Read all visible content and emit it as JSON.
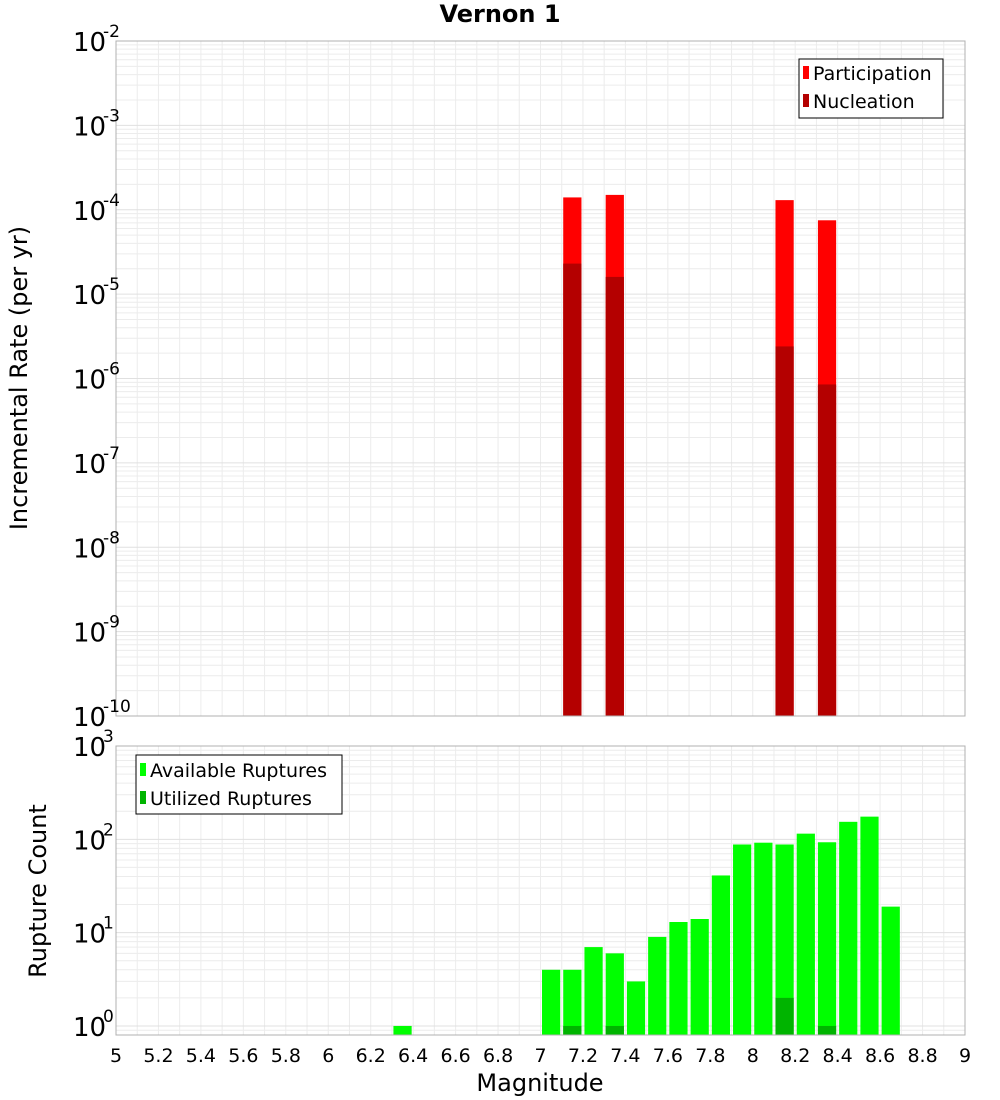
{
  "title": "Vernon 1",
  "chart_data": [
    {
      "type": "bar",
      "id": "rate-panel",
      "ylabel": "Incremental Rate (per yr)",
      "yscale": "log",
      "ylim": [
        1e-10,
        0.01
      ],
      "xlim": [
        5,
        9
      ],
      "grid": true,
      "legend_position": "top-right",
      "ytick_labels": [
        {
          "base": "10",
          "exp": "-10",
          "value": 1e-10
        },
        {
          "base": "10",
          "exp": "-9",
          "value": 1e-09
        },
        {
          "base": "10",
          "exp": "-8",
          "value": 1e-08
        },
        {
          "base": "10",
          "exp": "-7",
          "value": 1e-07
        },
        {
          "base": "10",
          "exp": "-6",
          "value": 1e-06
        },
        {
          "base": "10",
          "exp": "-5",
          "value": 1e-05
        },
        {
          "base": "10",
          "exp": "-4",
          "value": 0.0001
        },
        {
          "base": "10",
          "exp": "-3",
          "value": 0.001
        },
        {
          "base": "10",
          "exp": "-2",
          "value": 0.01
        }
      ],
      "series": [
        {
          "name": "Participation",
          "color": "#ff0000",
          "points": [
            {
              "x": 7.15,
              "y": 0.00014
            },
            {
              "x": 7.35,
              "y": 0.00015
            },
            {
              "x": 8.15,
              "y": 0.00013
            },
            {
              "x": 8.35,
              "y": 7.5e-05
            }
          ]
        },
        {
          "name": "Nucleation",
          "color": "#b40000",
          "points": [
            {
              "x": 7.15,
              "y": 2.3e-05
            },
            {
              "x": 7.35,
              "y": 1.6e-05
            },
            {
              "x": 8.15,
              "y": 2.4e-06
            },
            {
              "x": 8.35,
              "y": 8.5e-07
            }
          ]
        }
      ]
    },
    {
      "type": "bar",
      "id": "count-panel",
      "xlabel": "Magnitude",
      "ylabel": "Rupture Count",
      "yscale": "log",
      "ylim": [
        0.8,
        1000
      ],
      "xlim": [
        5,
        9
      ],
      "grid": true,
      "legend_position": "top-left",
      "xtick_labels": [
        "5",
        "5.2",
        "5.4",
        "5.6",
        "5.8",
        "6",
        "6.2",
        "6.4",
        "6.6",
        "6.8",
        "7",
        "7.2",
        "7.4",
        "7.6",
        "7.8",
        "8",
        "8.2",
        "8.4",
        "8.6",
        "8.8",
        "9"
      ],
      "ytick_labels": [
        {
          "base": "10",
          "exp": "0",
          "value": 1
        },
        {
          "base": "10",
          "exp": "1",
          "value": 10
        },
        {
          "base": "10",
          "exp": "2",
          "value": 100
        },
        {
          "base": "10",
          "exp": "3",
          "value": 1000
        }
      ],
      "series": [
        {
          "name": "Available Ruptures",
          "color": "#00ff00",
          "points": [
            {
              "x": 6.35,
              "y": 1
            },
            {
              "x": 7.05,
              "y": 4
            },
            {
              "x": 7.15,
              "y": 4
            },
            {
              "x": 7.25,
              "y": 7
            },
            {
              "x": 7.35,
              "y": 6
            },
            {
              "x": 7.45,
              "y": 3
            },
            {
              "x": 7.55,
              "y": 9
            },
            {
              "x": 7.65,
              "y": 13
            },
            {
              "x": 7.75,
              "y": 14
            },
            {
              "x": 7.85,
              "y": 41
            },
            {
              "x": 7.95,
              "y": 88
            },
            {
              "x": 8.05,
              "y": 92
            },
            {
              "x": 8.15,
              "y": 88
            },
            {
              "x": 8.25,
              "y": 115
            },
            {
              "x": 8.35,
              "y": 93
            },
            {
              "x": 8.45,
              "y": 154
            },
            {
              "x": 8.55,
              "y": 175
            },
            {
              "x": 8.65,
              "y": 19
            }
          ]
        },
        {
          "name": "Utilized Ruptures",
          "color": "#00b400",
          "points": [
            {
              "x": 7.15,
              "y": 1
            },
            {
              "x": 7.35,
              "y": 1
            },
            {
              "x": 8.15,
              "y": 2
            },
            {
              "x": 8.35,
              "y": 1
            }
          ]
        }
      ]
    }
  ]
}
